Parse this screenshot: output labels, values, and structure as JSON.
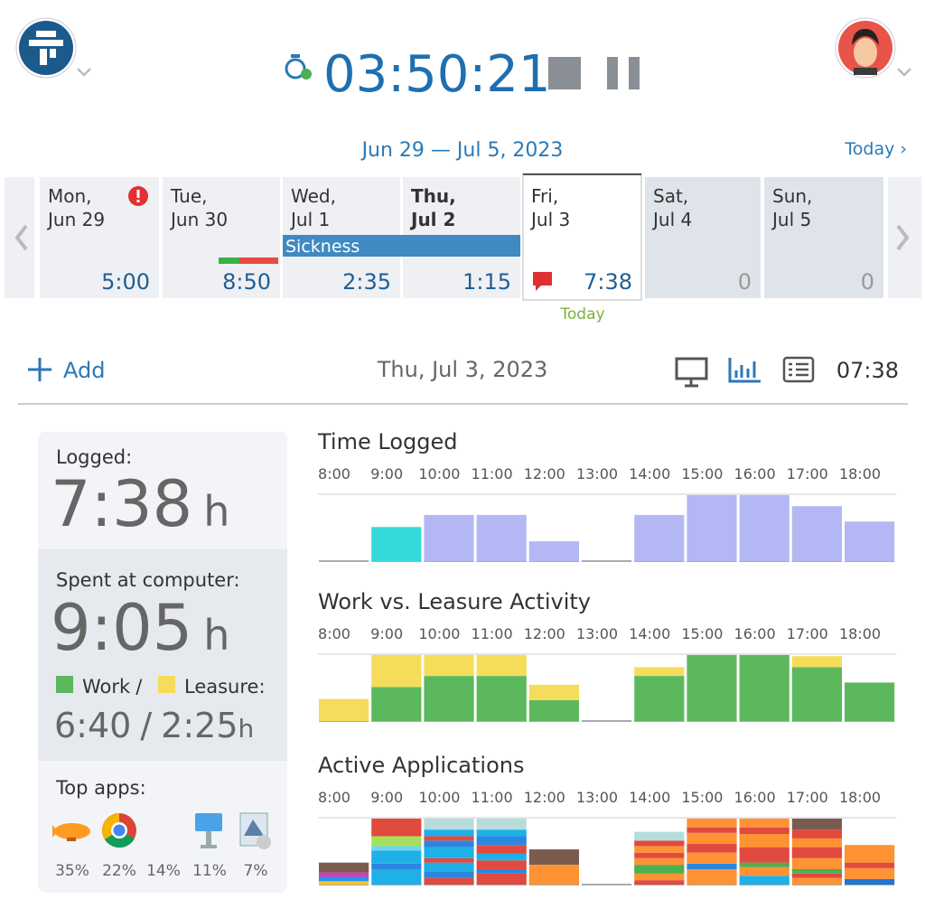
{
  "header": {
    "timer": "03:50:21",
    "range": "Jun 29 — Jul 5, 2023",
    "today_link": "Today ›"
  },
  "week": {
    "days": [
      {
        "day": "Mon,",
        "date": "Jun 29",
        "total": "5:00"
      },
      {
        "day": "Tue,",
        "date": "Jun 30",
        "total": "8:50"
      },
      {
        "day": "Wed,",
        "date": "Jul 1",
        "total": "2:35"
      },
      {
        "day": "Thu,",
        "date": "Jul 2",
        "total": "1:15"
      },
      {
        "day": "Fri,",
        "date": "Jul 3",
        "total": "7:38"
      },
      {
        "day": "Sat,",
        "date": "Jul 4",
        "total": "0"
      },
      {
        "day": "Sun,",
        "date": "Jul 5",
        "total": "0"
      }
    ],
    "event": "Sickness",
    "today_marker": "Today"
  },
  "toolbar": {
    "add": "Add",
    "date": "Thu, Jul 3, 2023",
    "total": "07:38"
  },
  "summary": {
    "logged_label": "Logged:",
    "logged": "7:38",
    "unit": "h",
    "computer_label": "Spent at computer:",
    "computer": "9:05",
    "work_label": "Work",
    "separator": "/",
    "leisure_label": "Leasure:",
    "work": "6:40",
    "leisure": "2:25",
    "top_apps_label": "Top apps:",
    "top_apps": [
      "35%",
      "22%",
      "14%",
      "11%",
      "7%"
    ]
  },
  "chart_data": [
    {
      "type": "bar",
      "title": "Time Logged",
      "categories": [
        "8:00",
        "9:00",
        "10:00",
        "11:00",
        "12:00",
        "13:00",
        "14:00",
        "15:00",
        "16:00",
        "17:00",
        "18:00"
      ],
      "values": [
        0,
        31,
        42,
        42,
        18,
        0,
        42,
        60,
        60,
        50,
        36
      ],
      "colors": [
        "#b3b8f5",
        "#35d9d9",
        "#b3b8f5",
        "#b3b8f5",
        "#b3b8f5",
        "#b3b8f5",
        "#b3b8f5",
        "#b3b8f5",
        "#b3b8f5",
        "#b3b8f5",
        "#b3b8f5"
      ],
      "ylim": [
        0,
        60
      ]
    },
    {
      "type": "stacked-bar",
      "title": "Work vs. Leasure Activity",
      "categories": [
        "8:00",
        "9:00",
        "10:00",
        "11:00",
        "12:00",
        "13:00",
        "14:00",
        "15:00",
        "16:00",
        "17:00",
        "18:00"
      ],
      "series": [
        {
          "name": "Work",
          "color": "#5cb85c",
          "values": [
            0,
            31,
            41,
            41,
            19,
            0,
            41,
            60,
            60,
            49,
            35
          ]
        },
        {
          "name": "Leasure",
          "color": "#f5dc5a",
          "values": [
            20,
            29,
            19,
            19,
            14,
            0,
            8,
            0,
            0,
            10,
            0
          ]
        }
      ],
      "ylim": [
        0,
        60
      ]
    },
    {
      "type": "segments",
      "title": "Active Applications",
      "categories": [
        "8:00",
        "9:00",
        "10:00",
        "11:00",
        "12:00",
        "13:00",
        "14:00",
        "15:00",
        "16:00",
        "17:00",
        "18:00"
      ],
      "stacks": [
        [
          {
            "color": "#f7c520",
            "value": 3
          },
          {
            "color": "#2196f3",
            "value": 4
          },
          {
            "color": "#d63fb0",
            "value": 4
          },
          {
            "color": "#7a5c4f",
            "value": 9
          }
        ],
        [
          {
            "color": "#1fb0e8",
            "value": 14
          },
          {
            "color": "#2a86e0",
            "value": 5
          },
          {
            "color": "#1fb0e8",
            "value": 12
          },
          {
            "color": "#6fd3f0",
            "value": 4
          },
          {
            "color": "#a5e05a",
            "value": 9
          },
          {
            "color": "#e04a3f",
            "value": 16
          }
        ],
        [
          {
            "color": "#e04a3f",
            "value": 6
          },
          {
            "color": "#2a86e0",
            "value": 6
          },
          {
            "color": "#1fb0e8",
            "value": 8
          },
          {
            "color": "#e04a3f",
            "value": 4
          },
          {
            "color": "#1fb0e8",
            "value": 10
          },
          {
            "color": "#2a86e0",
            "value": 6
          },
          {
            "color": "#e04a3f",
            "value": 4
          },
          {
            "color": "#1fb0e8",
            "value": 6
          },
          {
            "color": "#b7dcdc",
            "value": 10
          }
        ],
        [
          {
            "color": "#e04a3f",
            "value": 10
          },
          {
            "color": "#2a86e0",
            "value": 4
          },
          {
            "color": "#e04a3f",
            "value": 8
          },
          {
            "color": "#1fb0e8",
            "value": 6
          },
          {
            "color": "#e04a3f",
            "value": 8
          },
          {
            "color": "#2a86e0",
            "value": 8
          },
          {
            "color": "#1fb0e8",
            "value": 6
          },
          {
            "color": "#b7dcdc",
            "value": 10
          }
        ],
        [
          {
            "color": "#ff9233",
            "value": 18
          },
          {
            "color": "#7a5c4f",
            "value": 14
          }
        ],
        [],
        [
          {
            "color": "#e04a3f",
            "value": 4
          },
          {
            "color": "#ff9233",
            "value": 6
          },
          {
            "color": "#4caf50",
            "value": 8
          },
          {
            "color": "#ff9233",
            "value": 6
          },
          {
            "color": "#e04a3f",
            "value": 5
          },
          {
            "color": "#ff9233",
            "value": 6
          },
          {
            "color": "#e04a3f",
            "value": 5
          },
          {
            "color": "#b7dcdc",
            "value": 8
          }
        ],
        [
          {
            "color": "#ff9233",
            "value": 14
          },
          {
            "color": "#2a86e0",
            "value": 5
          },
          {
            "color": "#ff9233",
            "value": 10
          },
          {
            "color": "#e04a3f",
            "value": 8
          },
          {
            "color": "#ff9233",
            "value": 10
          },
          {
            "color": "#e04a3f",
            "value": 5
          },
          {
            "color": "#ff9233",
            "value": 8
          }
        ],
        [
          {
            "color": "#1fb0e8",
            "value": 8
          },
          {
            "color": "#ff9233",
            "value": 8
          },
          {
            "color": "#4caf50",
            "value": 4
          },
          {
            "color": "#e04a3f",
            "value": 14
          },
          {
            "color": "#ff9233",
            "value": 12
          },
          {
            "color": "#e04a3f",
            "value": 6
          },
          {
            "color": "#ff9233",
            "value": 8
          }
        ],
        [
          {
            "color": "#ff9233",
            "value": 6
          },
          {
            "color": "#e04a3f",
            "value": 4
          },
          {
            "color": "#4caf50",
            "value": 4
          },
          {
            "color": "#ff9233",
            "value": 10
          },
          {
            "color": "#e04a3f",
            "value": 10
          },
          {
            "color": "#ff9233",
            "value": 8
          },
          {
            "color": "#e04a3f",
            "value": 8
          },
          {
            "color": "#7a5c4f",
            "value": 10
          }
        ],
        [
          {
            "color": "#1f78d1",
            "value": 5
          },
          {
            "color": "#ff9233",
            "value": 10
          },
          {
            "color": "#e04a3f",
            "value": 5
          },
          {
            "color": "#ff9233",
            "value": 16
          }
        ]
      ],
      "ylim": [
        0,
        60
      ]
    }
  ]
}
